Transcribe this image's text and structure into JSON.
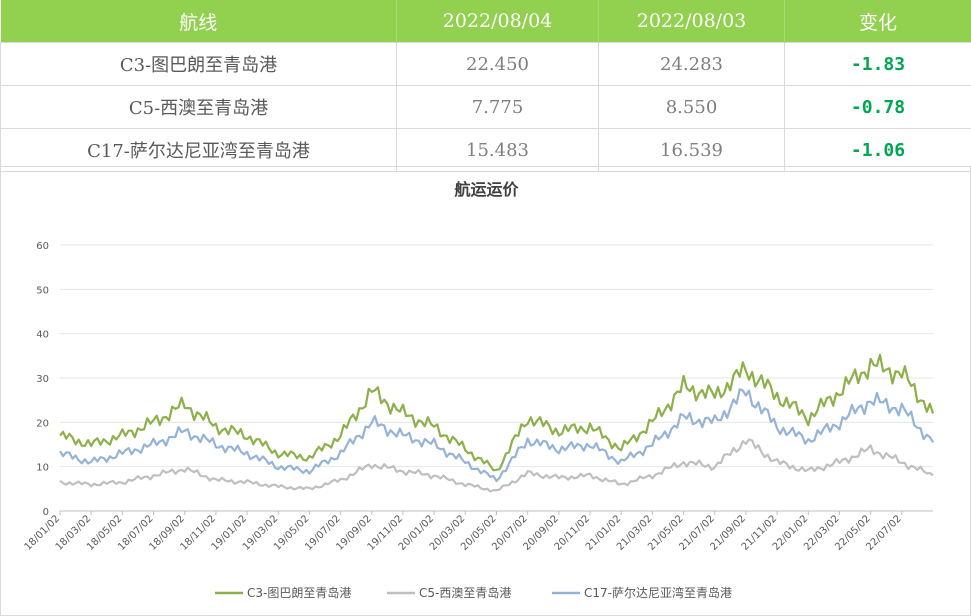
{
  "table": {
    "headers": [
      "航线",
      "2022/08/04",
      "2022/08/03",
      "变化"
    ],
    "rows": [
      {
        "route": "C3-图巴朗至青岛港",
        "d1": "22.450",
        "d2": "24.283",
        "change": "-1.83"
      },
      {
        "route": "C5-西澳至青岛港",
        "d1": "7.775",
        "d2": "8.550",
        "change": "-0.78"
      },
      {
        "route": "C17-萨尔达尼亚湾至青岛港",
        "d1": "15.483",
        "d2": "16.539",
        "change": "-1.06"
      }
    ],
    "header_bg": "#92d050",
    "change_color": "#00a651"
  },
  "chart_data": {
    "type": "line",
    "title": "航运运价",
    "ylim": [
      0,
      60
    ],
    "yticks": [
      0,
      10,
      20,
      30,
      40,
      50,
      60
    ],
    "grid": true,
    "legend_position": "bottom",
    "x_tick_labels": [
      "18/01/02",
      "18/03/02",
      "18/05/02",
      "18/07/02",
      "18/09/02",
      "18/11/02",
      "19/01/02",
      "19/03/02",
      "19/05/02",
      "19/07/02",
      "19/09/02",
      "19/11/02",
      "20/01/02",
      "20/03/02",
      "20/05/02",
      "20/07/02",
      "20/09/02",
      "20/11/02",
      "21/01/02",
      "21/03/02",
      "21/05/02",
      "21/07/02",
      "21/09/02",
      "21/11/02",
      "22/01/02",
      "22/03/02",
      "22/05/02",
      "22/07/02"
    ],
    "x": [
      "18/01",
      "18/03",
      "18/05",
      "18/07",
      "18/09",
      "18/11",
      "19/01",
      "19/03",
      "19/05",
      "19/07",
      "19/09",
      "19/11",
      "20/01",
      "20/03",
      "20/05",
      "20/07",
      "20/09",
      "20/11",
      "21/01",
      "21/03",
      "21/05",
      "21/07",
      "21/09",
      "21/11",
      "22/01",
      "22/03",
      "22/05",
      "22/07",
      "22/08"
    ],
    "series": [
      {
        "name": "C3-图巴朗至青岛港",
        "color": "#8db04a",
        "values": [
          17,
          15,
          17,
          20,
          24,
          19,
          17,
          13,
          12,
          17,
          27,
          22,
          19,
          14,
          9,
          21,
          18,
          19,
          14,
          20,
          28,
          26,
          32,
          26,
          21,
          27,
          33,
          31,
          22
        ]
      },
      {
        "name": "C5-西澳至青岛港",
        "color": "#bfbfbf",
        "values": [
          6.5,
          6,
          6.5,
          8,
          9.5,
          7,
          6.5,
          5.5,
          5,
          7,
          10.5,
          9,
          8,
          6,
          4.5,
          8.5,
          7.5,
          8,
          6,
          8,
          11,
          10,
          16,
          11,
          9,
          11,
          14,
          11,
          8
        ]
      },
      {
        "name": "C17-萨尔达尼亚湾至青岛港",
        "color": "#95b3d7",
        "values": [
          13,
          11,
          13,
          15,
          18,
          15,
          13,
          10,
          9,
          13,
          20,
          17,
          15,
          11,
          7,
          16,
          14,
          15,
          11,
          15,
          21,
          20,
          27,
          19,
          16,
          20,
          25,
          23,
          15.5
        ]
      }
    ]
  }
}
